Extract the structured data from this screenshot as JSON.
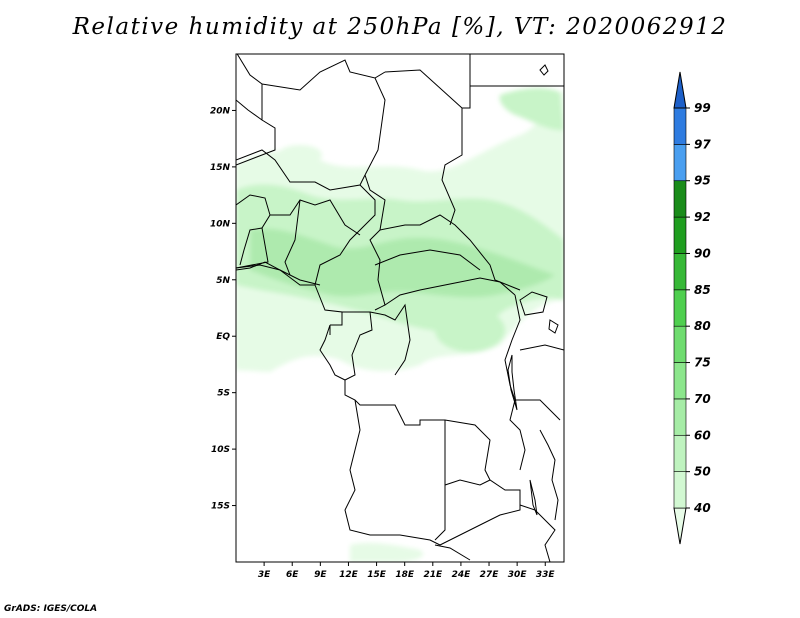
{
  "title": "Relative humidity at 250hPa [%], VT: 2020062912",
  "credit": "GrADS: IGES/COLA",
  "map": {
    "lon_labels": [
      "3E",
      "6E",
      "9E",
      "12E",
      "15E",
      "18E",
      "21E",
      "24E",
      "27E",
      "30E",
      "33E"
    ],
    "lat_labels": [
      "20N",
      "15N",
      "10N",
      "5N",
      "EQ",
      "5S",
      "10S",
      "15S"
    ],
    "lon_range": [
      0,
      35
    ],
    "lat_range": [
      -20,
      25
    ]
  },
  "colorbar": {
    "levels": [
      "40",
      "50",
      "60",
      "70",
      "75",
      "80",
      "85",
      "90",
      "92",
      "95",
      "97",
      "99"
    ],
    "colors": [
      "#e8fce8",
      "#d2f8d2",
      "#bff3bf",
      "#a6eca6",
      "#8ce68c",
      "#6fdc6f",
      "#4fcf4f",
      "#37b837",
      "#1f9e1f",
      "#1a8c1a",
      "#4a9ff0",
      "#2f7ce0",
      "#1d60c9"
    ]
  },
  "colors": {
    "humid_light": "#e6fbe6",
    "humid_mid": "#c8f4c8",
    "humid_dense": "#aeeaae",
    "border": "#000000"
  }
}
